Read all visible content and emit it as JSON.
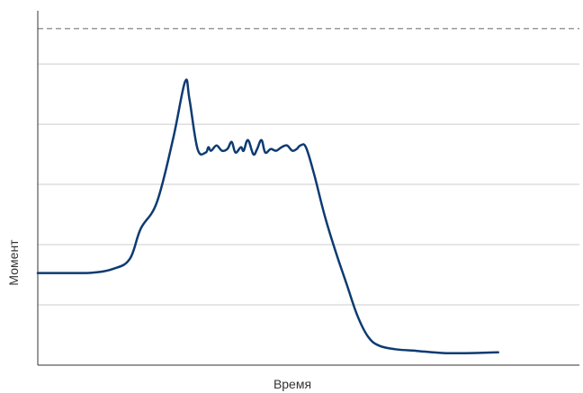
{
  "chart_data": {
    "type": "line",
    "xlabel": "Время",
    "ylabel": "Момент",
    "grid": true,
    "xlim": [
      0,
      100
    ],
    "ylim": [
      0,
      100
    ],
    "yticks": [
      0,
      17,
      34,
      51,
      68,
      85
    ],
    "reference_line": {
      "y": 95,
      "style": "dashed"
    },
    "colors": {
      "series": "#0d3b72",
      "grid": "#cccccc",
      "axis": "#333333",
      "reference": "#999999"
    },
    "series": [
      {
        "x": [
          0,
          5,
          10,
          14,
          17,
          19,
          22,
          25,
          27.2,
          28,
          29.5,
          31,
          31.5,
          32,
          33,
          34,
          35,
          35.8,
          36.5,
          37.5,
          38,
          38.8,
          39.8,
          40.5,
          41.3,
          42,
          43,
          44,
          45,
          46,
          47,
          47.8,
          48.5,
          49.5,
          51,
          53,
          55,
          57,
          59,
          61,
          63,
          66,
          70,
          75,
          80,
          85
        ],
        "y": [
          26,
          26,
          26.1,
          27.2,
          30,
          38.5,
          46,
          64,
          80,
          75,
          61,
          60,
          61.5,
          60.5,
          62,
          60.5,
          61,
          63,
          60,
          61.5,
          60.5,
          63.5,
          59.5,
          61,
          63.5,
          60,
          61,
          60.5,
          61.5,
          62,
          60.5,
          61,
          62,
          61.5,
          54,
          42,
          32,
          23,
          14,
          8,
          5.5,
          4.5,
          4,
          3.4,
          3.4,
          3.6
        ]
      }
    ]
  }
}
